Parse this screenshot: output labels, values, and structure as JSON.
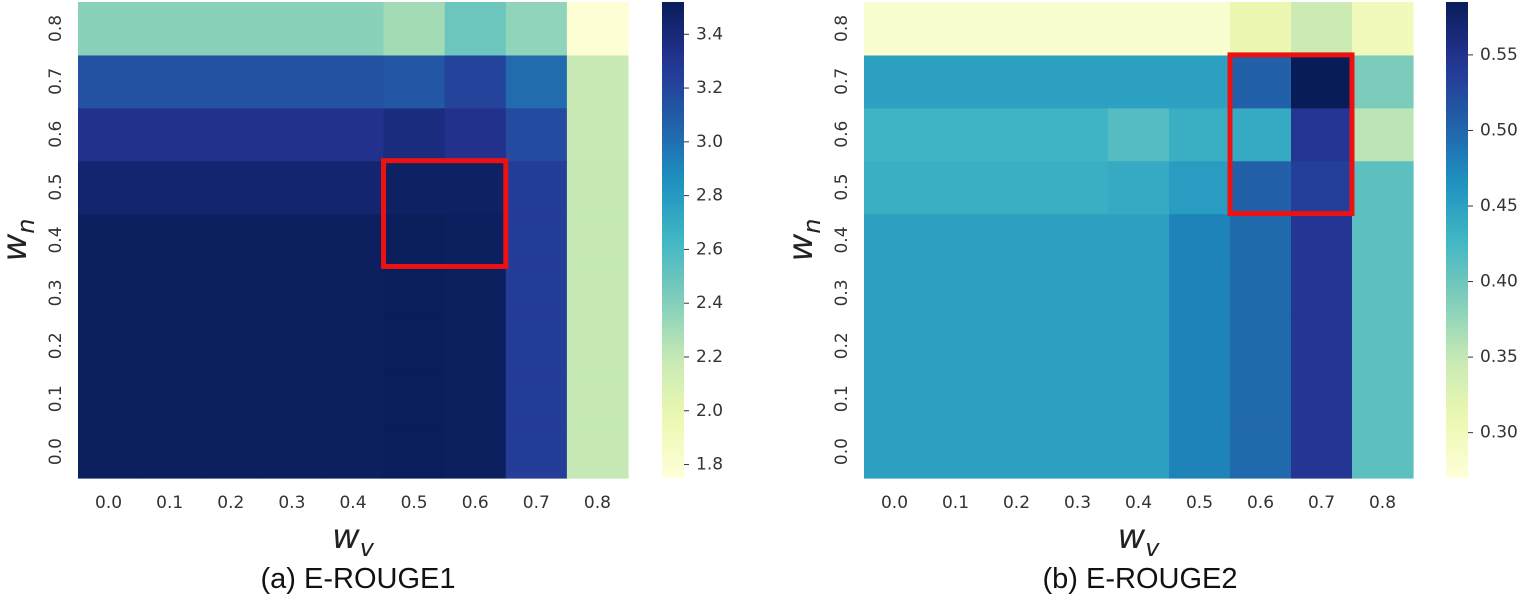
{
  "chart_data": [
    {
      "type": "heatmap",
      "caption": "(a) E-ROUGE1",
      "xlabel": "w",
      "xlabel_sub": "v",
      "ylabel": "w",
      "ylabel_sub": "n",
      "x_categories": [
        "0.0",
        "0.1",
        "0.2",
        "0.3",
        "0.4",
        "0.5",
        "0.6",
        "0.7",
        "0.8"
      ],
      "y_categories": [
        "0.0",
        "0.1",
        "0.2",
        "0.3",
        "0.4",
        "0.5",
        "0.6",
        "0.7",
        "0.8"
      ],
      "colormap": "YlGnBu",
      "vmin": 1.75,
      "vmax": 3.52,
      "colorbar_ticks": [
        "1.8",
        "2.0",
        "2.2",
        "2.4",
        "2.6",
        "2.8",
        "3.0",
        "3.2",
        "3.4"
      ],
      "values": [
        [
          3.49,
          3.49,
          3.49,
          3.49,
          3.49,
          3.51,
          3.49,
          3.25,
          2.2
        ],
        [
          3.49,
          3.49,
          3.49,
          3.49,
          3.49,
          3.51,
          3.49,
          3.25,
          2.2
        ],
        [
          3.49,
          3.49,
          3.49,
          3.49,
          3.49,
          3.51,
          3.49,
          3.25,
          2.2
        ],
        [
          3.49,
          3.49,
          3.49,
          3.49,
          3.49,
          3.51,
          3.49,
          3.25,
          2.2
        ],
        [
          3.49,
          3.49,
          3.49,
          3.49,
          3.49,
          3.51,
          3.49,
          3.25,
          2.2
        ],
        [
          3.44,
          3.44,
          3.44,
          3.44,
          3.44,
          3.48,
          3.48,
          3.25,
          2.2
        ],
        [
          3.33,
          3.33,
          3.33,
          3.33,
          3.33,
          3.38,
          3.33,
          3.18,
          2.18
        ],
        [
          3.14,
          3.14,
          3.14,
          3.14,
          3.14,
          3.12,
          3.22,
          3.02,
          2.18
        ],
        [
          2.38,
          2.38,
          2.38,
          2.38,
          2.38,
          2.3,
          2.48,
          2.36,
          1.78
        ]
      ],
      "highlight": {
        "x": [
          "0.5",
          "0.6"
        ],
        "y": [
          "0.4",
          "0.5"
        ],
        "color": "#ee1111"
      }
    },
    {
      "type": "heatmap",
      "caption": "(b) E-ROUGE2",
      "xlabel": "w",
      "xlabel_sub": "v",
      "ylabel": "w",
      "ylabel_sub": "n",
      "x_categories": [
        "0.0",
        "0.1",
        "0.2",
        "0.3",
        "0.4",
        "0.5",
        "0.6",
        "0.7",
        "0.8"
      ],
      "y_categories": [
        "0.0",
        "0.1",
        "0.2",
        "0.3",
        "0.4",
        "0.5",
        "0.6",
        "0.7",
        "0.8"
      ],
      "colormap": "YlGnBu",
      "vmin": 0.27,
      "vmax": 0.585,
      "colorbar_ticks": [
        "0.30",
        "0.35",
        "0.40",
        "0.45",
        "0.50",
        "0.55"
      ],
      "values": [
        [
          0.45,
          0.45,
          0.45,
          0.45,
          0.45,
          0.478,
          0.498,
          0.545,
          0.41
        ],
        [
          0.45,
          0.45,
          0.45,
          0.45,
          0.45,
          0.478,
          0.498,
          0.545,
          0.41
        ],
        [
          0.45,
          0.45,
          0.45,
          0.45,
          0.45,
          0.478,
          0.498,
          0.545,
          0.41
        ],
        [
          0.45,
          0.45,
          0.45,
          0.45,
          0.45,
          0.478,
          0.498,
          0.545,
          0.41
        ],
        [
          0.45,
          0.45,
          0.45,
          0.45,
          0.45,
          0.478,
          0.498,
          0.545,
          0.41
        ],
        [
          0.435,
          0.435,
          0.435,
          0.435,
          0.44,
          0.455,
          0.505,
          0.535,
          0.41
        ],
        [
          0.43,
          0.43,
          0.43,
          0.43,
          0.415,
          0.435,
          0.44,
          0.545,
          0.355
        ],
        [
          0.45,
          0.45,
          0.45,
          0.45,
          0.45,
          0.45,
          0.505,
          0.585,
          0.39
        ],
        [
          0.28,
          0.28,
          0.28,
          0.28,
          0.28,
          0.28,
          0.31,
          0.345,
          0.3
        ]
      ],
      "highlight": {
        "x": [
          "0.6",
          "0.7"
        ],
        "y": [
          "0.5",
          "0.7"
        ],
        "color": "#ee1111"
      }
    }
  ]
}
